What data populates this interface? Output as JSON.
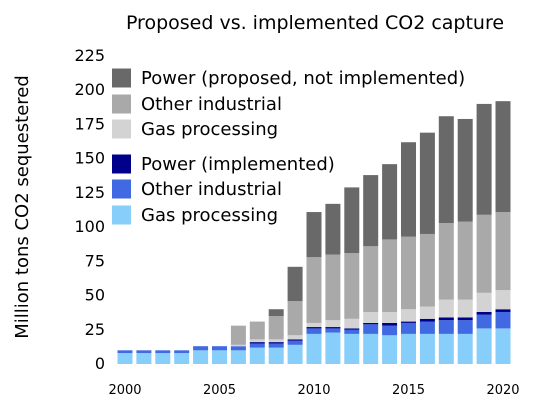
{
  "chart_data": {
    "type": "bar",
    "stacked": true,
    "title": "Proposed vs. implemented CO2 capture",
    "ylabel": "Million tons CO2 sequestered",
    "xlabel": "",
    "ylim": [
      0,
      225
    ],
    "yticks": [
      0,
      25,
      50,
      75,
      100,
      125,
      150,
      175,
      200,
      225
    ],
    "xticks": [
      2000,
      2005,
      2010,
      2015,
      2020
    ],
    "grid": false,
    "legend_position": "top-left",
    "categories": [
      2000,
      2001,
      2002,
      2003,
      2004,
      2005,
      2006,
      2007,
      2008,
      2009,
      2010,
      2011,
      2012,
      2013,
      2014,
      2015,
      2016,
      2017,
      2018,
      2019,
      2020
    ],
    "series": [
      {
        "name": "Gas processing",
        "color": "#87cefa",
        "values": [
          8,
          8,
          8,
          8,
          10,
          10,
          10,
          12,
          12,
          14,
          22,
          23,
          22,
          22,
          21,
          22,
          22,
          22,
          22,
          26,
          26
        ]
      },
      {
        "name": "Other industrial",
        "color": "#4169e1",
        "values": [
          2,
          2,
          2,
          2,
          3,
          3,
          3,
          3,
          3,
          3,
          4,
          3,
          3,
          7,
          7,
          8,
          9,
          10,
          10,
          10,
          12
        ]
      },
      {
        "name": "Power (implemented)",
        "color": "#00008b",
        "values": [
          0,
          0,
          0,
          0,
          0,
          0,
          0,
          1,
          1,
          1,
          1,
          1,
          1,
          1,
          2,
          1,
          2,
          2,
          2,
          2,
          2
        ]
      },
      {
        "name": "Gas processing",
        "color": "#d3d3d3",
        "values": [
          0,
          0,
          0,
          0,
          0,
          0,
          1,
          2,
          2,
          3,
          3,
          5,
          7,
          8,
          8,
          9,
          9,
          13,
          13,
          14,
          14
        ]
      },
      {
        "name": "Other industrial",
        "color": "#a9a9a9",
        "values": [
          0,
          0,
          0,
          0,
          0,
          0,
          14,
          13,
          17,
          25,
          48,
          48,
          48,
          48,
          53,
          53,
          53,
          56,
          57,
          57,
          57
        ]
      },
      {
        "name": "Power (proposed, not implemented)",
        "color": "#696969",
        "values": [
          0,
          0,
          0,
          0,
          0,
          0,
          0,
          0,
          5,
          25,
          33,
          37,
          48,
          52,
          55,
          69,
          74,
          78,
          75,
          81,
          81
        ]
      }
    ],
    "legend": [
      {
        "label": "Power (proposed, not implemented)",
        "color": "#696969"
      },
      {
        "label": "Other industrial",
        "color": "#a9a9a9"
      },
      {
        "label": "Gas processing",
        "color": "#d3d3d3"
      },
      {
        "label": "Power (implemented)",
        "color": "#00008b"
      },
      {
        "label": "Other industrial",
        "color": "#4169e1"
      },
      {
        "label": "Gas processing",
        "color": "#87cefa"
      }
    ]
  }
}
